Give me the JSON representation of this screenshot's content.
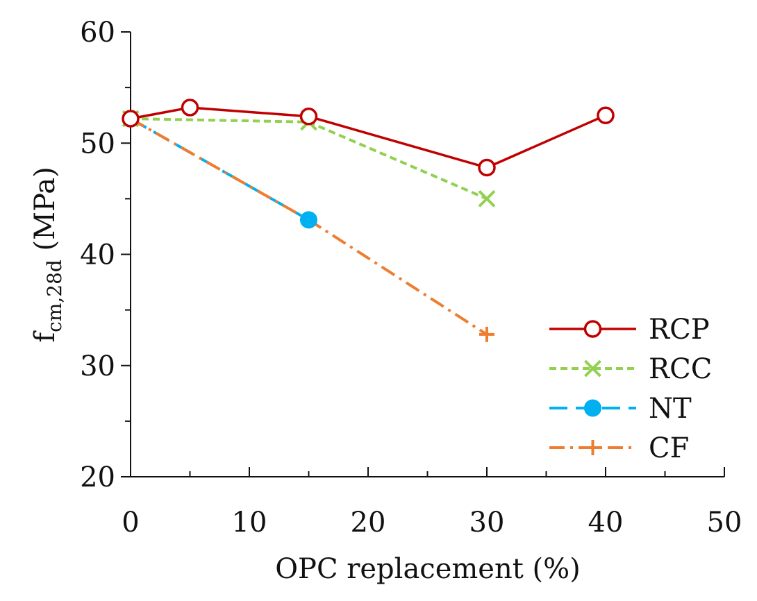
{
  "chart_data": {
    "type": "line",
    "title": "",
    "xlabel": "OPC replacement (%)",
    "ylabel": {
      "main": "f",
      "subscript": "cm,28d",
      "unit": " (MPa)"
    },
    "xlim": [
      0,
      50
    ],
    "ylim": [
      20,
      60
    ],
    "x_major_ticks": [
      0,
      10,
      20,
      30,
      40,
      50
    ],
    "x_minor_ticks": [
      5,
      15,
      25,
      35,
      45
    ],
    "y_major_ticks": [
      20,
      30,
      40,
      50,
      60
    ],
    "y_minor_ticks": [
      25,
      35,
      45,
      55
    ],
    "x_tick_labels": [
      "0",
      "10",
      "20",
      "30",
      "40",
      "50"
    ],
    "y_tick_labels": [
      "20",
      "30",
      "40",
      "50",
      "60"
    ],
    "grid": false,
    "legend_position": "bottom-right",
    "series": [
      {
        "name": "RCP",
        "color": "#c00000",
        "dash": "solid",
        "marker": "open-circle",
        "points": [
          [
            0,
            52.2
          ],
          [
            5,
            53.2
          ],
          [
            15,
            52.4
          ],
          [
            30,
            47.8
          ],
          [
            40,
            52.5
          ]
        ]
      },
      {
        "name": "RCC",
        "color": "#92d050",
        "dash": "dashed",
        "marker": "x",
        "points": [
          [
            0,
            52.2
          ],
          [
            15,
            51.9
          ],
          [
            30,
            45.0
          ]
        ]
      },
      {
        "name": "NT",
        "color": "#00b0f0",
        "dash": "long-dash",
        "marker": "filled-circle",
        "points": [
          [
            0,
            52.2
          ],
          [
            15,
            43.1
          ]
        ]
      },
      {
        "name": "CF",
        "color": "#ed7d31",
        "dash": "dash-dot",
        "marker": "plus",
        "points": [
          [
            0,
            52.2
          ],
          [
            15,
            43.1
          ],
          [
            30,
            32.8
          ]
        ]
      }
    ]
  }
}
